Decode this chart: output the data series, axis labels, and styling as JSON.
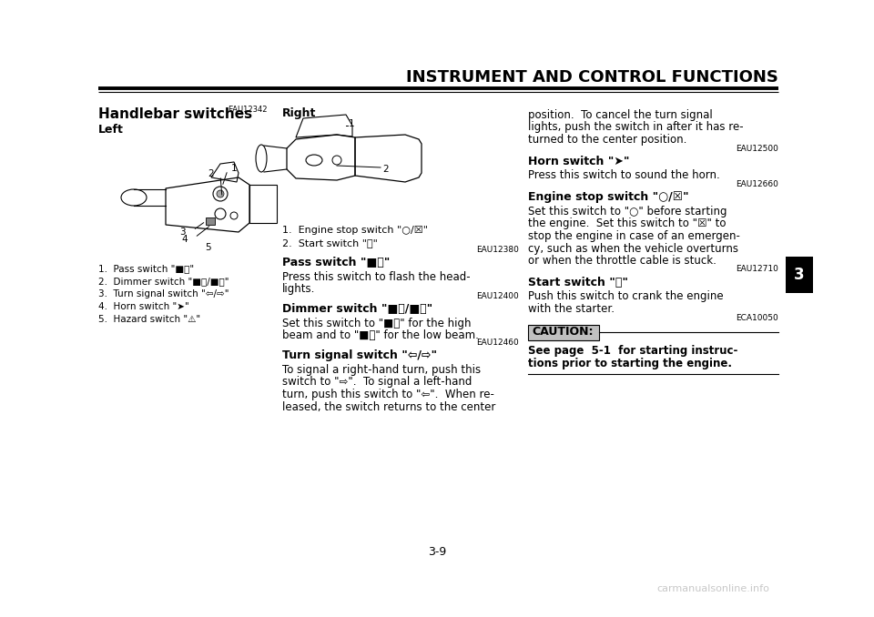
{
  "bg_color": "#ffffff",
  "title": "INSTRUMENT AND CONTROL FUNCTIONS",
  "page_number": "3-9",
  "chapter_number": "3",
  "section_title": "Handlebar switches",
  "section_code": "EAU12342",
  "left_label": "Left",
  "right_label": "Right",
  "left_list_items": [
    "1.  Pass switch \"■⦾\"",
    "2.  Dimmer switch \"■⦾/■⦾\"",
    "3.  Turn signal switch \"⇦/⇨\"",
    "4.  Horn switch \"➤\"",
    "5.  Hazard switch \"⚠\""
  ],
  "right_list_items": [
    "1.  Engine stop switch \"○/☒\"",
    "2.  Start switch \"ⓢ\""
  ],
  "pass_switch_code": "EAU12380",
  "pass_switch_title": "Pass switch \"■⦾\"",
  "pass_switch_lines": [
    "Press this switch to flash the head-",
    "lights."
  ],
  "dimmer_switch_code": "EAU12400",
  "dimmer_switch_title": "Dimmer switch \"■⦾/■⦾\"",
  "dimmer_switch_lines": [
    "Set this switch to \"■⦾\" for the high",
    "beam and to \"■⦾\" for the low beam."
  ],
  "turn_signal_code": "EAU12460",
  "turn_signal_title": "Turn signal switch \"⇦/⇨\"",
  "turn_signal_lines": [
    "To signal a right-hand turn, push this",
    "switch to \"⇨\".  To signal a left-hand",
    "turn, push this switch to \"⇦\".  When re-",
    "leased, the switch returns to the center"
  ],
  "right_col_continuation": [
    "position.  To cancel the turn signal",
    "lights, push the switch in after it has re-",
    "turned to the center position."
  ],
  "horn_switch_code": "EAU12500",
  "horn_switch_title": "Horn switch \"➤\"",
  "horn_switch_lines": [
    "Press this switch to sound the horn."
  ],
  "engine_stop_code": "EAU12660",
  "engine_stop_title": "Engine stop switch \"○/☒\"",
  "engine_stop_lines": [
    "Set this switch to \"○\" before starting",
    "the engine.  Set this switch to \"☒\" to",
    "stop the engine in case of an emergen-",
    "cy, such as when the vehicle overturns",
    "or when the throttle cable is stuck."
  ],
  "start_switch_code": "EAU12710",
  "start_switch_title": "Start switch \"ⓢ\"",
  "start_switch_lines": [
    "Push this switch to crank the engine",
    "with the starter."
  ],
  "caution_code": "ECA10050",
  "caution_title": "CAUTION:",
  "caution_lines": [
    "See page  5-1  for starting instruc-",
    "tions prior to starting the engine."
  ],
  "watermark": "carmanualsonline.info",
  "line_color": "#000000",
  "title_color": "#000000",
  "text_color": "#000000",
  "watermark_color": "#c8c8c8",
  "caution_bg": "#c0c0c0",
  "chapter_tab_bg": "#000000",
  "chapter_tab_fg": "#ffffff"
}
